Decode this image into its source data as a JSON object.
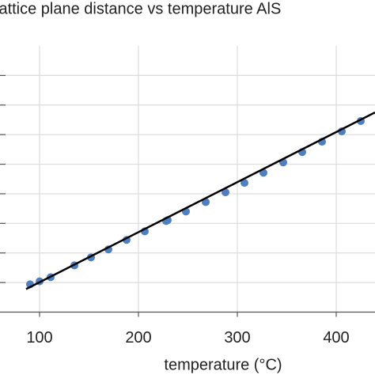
{
  "chart_data": {
    "type": "scatter",
    "title": "lattice plane distance  vs temperature AlS",
    "x_label": "temperature (°C)",
    "x": [
      90.4,
      100,
      111.2,
      135.2,
      152,
      169.6,
      188,
      206.4,
      228,
      229.6,
      248,
      268,
      288,
      307.2,
      326.4,
      346.4,
      365.6,
      385.6,
      405.6,
      424.8
    ],
    "series": [
      {
        "color": "#4f7fbf",
        "values": [
          0.94,
          1.04,
          1.18,
          1.58,
          1.85,
          2.12,
          2.44,
          2.73,
          3.08,
          3.11,
          3.4,
          3.72,
          4.05,
          4.37,
          4.71,
          5.06,
          5.41,
          5.76,
          6.11,
          6.46
        ]
      }
    ],
    "fit_line": {
      "color": "#000000",
      "x": [
        86.4,
        439.2
      ],
      "values": [
        0.78,
        6.75
      ]
    },
    "xlim": [
      60,
      439.2
    ],
    "xticks": [
      100,
      200,
      300,
      400
    ],
    "ylim": [
      0,
      9
    ],
    "yticks": [
      1,
      2,
      3,
      4,
      5,
      6,
      7,
      8
    ],
    "grid": true
  }
}
